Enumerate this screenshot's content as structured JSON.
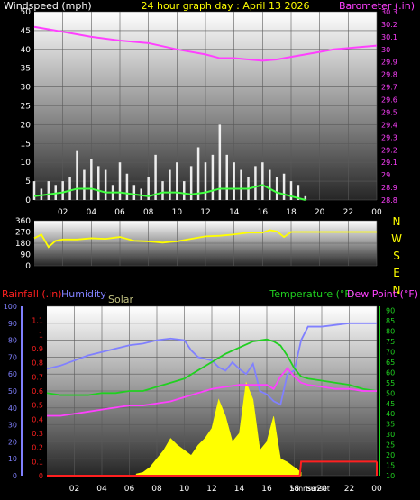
{
  "page": {
    "title": "24 hour graph day : April 13 2026",
    "colors": {
      "background": "#000000",
      "title": "#ffff00",
      "tick": "#ffffff",
      "gridline": "#404040"
    }
  },
  "chart_data": [
    {
      "id": "wind",
      "type": "line",
      "labels": {
        "left_title": "Windspeed (mph)",
        "right_title": "Barometer (.in)"
      },
      "x": {
        "ticks": [
          "02",
          "04",
          "06",
          "08",
          "10",
          "12",
          "14",
          "16",
          "18",
          "20",
          "22",
          "00"
        ],
        "tick_hours": [
          2,
          4,
          6,
          8,
          10,
          12,
          14,
          16,
          18,
          20,
          22,
          24
        ],
        "range_hours": [
          0,
          24
        ]
      },
      "y_left": {
        "range": [
          0,
          50
        ],
        "ticks": [
          "0",
          "5",
          "10",
          "15",
          "20",
          "25",
          "30",
          "35",
          "40",
          "45",
          "50"
        ]
      },
      "y_right": {
        "range": [
          28.8,
          30.3
        ],
        "ticks": [
          "28.8",
          "28.9",
          "29",
          "29.1",
          "29.2",
          "29.3",
          "29.4",
          "29.5",
          "29.6",
          "29.7",
          "29.8",
          "29.9",
          "30",
          "30.1",
          "30.2",
          "30.3"
        ]
      },
      "grid": true,
      "series": [
        {
          "kind": "barometer",
          "axis": "right",
          "color": "#ff40ff",
          "hours": [
            0,
            2,
            4,
            6,
            8,
            10,
            12,
            13,
            14,
            15,
            16,
            17,
            18,
            19,
            20,
            21,
            22,
            23,
            24
          ],
          "values": [
            30.18,
            30.14,
            30.1,
            30.07,
            30.05,
            30.0,
            29.96,
            29.93,
            29.93,
            29.92,
            29.91,
            29.92,
            29.94,
            29.96,
            29.98,
            30.0,
            30.01,
            30.02,
            30.03
          ]
        },
        {
          "kind": "gust",
          "axis": "left",
          "color": "#ffffff",
          "hours": [
            0,
            0.5,
            1,
            1.5,
            2,
            2.5,
            3,
            3.5,
            4,
            4.5,
            5,
            5.5,
            6,
            6.5,
            7,
            7.5,
            8,
            8.5,
            9,
            9.5,
            10,
            10.5,
            11,
            11.5,
            12,
            12.5,
            13,
            13.5,
            14,
            14.5,
            15,
            15.5,
            16,
            16.5,
            17,
            17.5,
            18,
            18.5,
            19
          ],
          "values": [
            5,
            3,
            5,
            4,
            5,
            6,
            13,
            8,
            11,
            9,
            8,
            4,
            10,
            7,
            4,
            3,
            6,
            12,
            5,
            8,
            10,
            5,
            9,
            14,
            10,
            12,
            20,
            12,
            10,
            8,
            6,
            9,
            10,
            8,
            6,
            7,
            5,
            4,
            1
          ]
        },
        {
          "kind": "average",
          "axis": "left",
          "color": "#40ff40",
          "hours": [
            0,
            1,
            2,
            3,
            4,
            5,
            6,
            7,
            8,
            9,
            10,
            11,
            12,
            13,
            14,
            15,
            16,
            17,
            18,
            19
          ],
          "values": [
            1,
            1.5,
            2,
            3,
            3,
            2,
            2,
            1.5,
            1,
            2,
            2,
            1.5,
            2,
            3,
            3,
            3,
            4,
            2,
            1,
            0
          ]
        }
      ]
    },
    {
      "id": "direction",
      "type": "line",
      "x": {
        "range_hours": [
          0,
          24
        ]
      },
      "y": {
        "range": [
          0,
          360
        ],
        "ticks": [
          "0",
          "90",
          "180",
          "270",
          "360"
        ]
      },
      "compass": [
        "N",
        "W",
        "S",
        "E",
        "N"
      ],
      "grid": true,
      "series": [
        {
          "kind": "direction",
          "color": "#ffff00",
          "hours": [
            0,
            0.5,
            1,
            1.5,
            2,
            3,
            4,
            5,
            6,
            7,
            8,
            9,
            10,
            11,
            12,
            13,
            14,
            15,
            16,
            16.5,
            17,
            17.5,
            18,
            19,
            20,
            21,
            22,
            23,
            24
          ],
          "values": [
            220,
            250,
            150,
            200,
            210,
            210,
            220,
            215,
            230,
            200,
            195,
            185,
            195,
            215,
            235,
            240,
            250,
            265,
            265,
            285,
            275,
            230,
            270,
            270,
            270,
            270,
            270,
            270,
            270
          ]
        }
      ]
    },
    {
      "id": "weather",
      "type": "line",
      "labels": {
        "rainfall": "Rainfall (.in)",
        "humidity": "Humidity",
        "solar": "Solar",
        "temperature": "Temperature (°F)",
        "dewpoint": "Dew Point (°F)",
        "sunrise": "Sunrise",
        "sunset": "Sunset"
      },
      "x": {
        "ticks": [
          "02",
          "04",
          "06",
          "08",
          "10",
          "12",
          "14",
          "16",
          "18",
          "20",
          "22",
          "00"
        ],
        "tick_hours": [
          2,
          4,
          6,
          8,
          10,
          12,
          14,
          16,
          18,
          20,
          22,
          24
        ],
        "range_hours": [
          0,
          24
        ],
        "sunrise_hour": 19.4,
        "sunset_hour": 19.6
      },
      "y_humidity": {
        "range": [
          0,
          100
        ],
        "ticks": [
          "0",
          "10",
          "20",
          "30",
          "40",
          "50",
          "60",
          "70",
          "80",
          "90",
          "100"
        ]
      },
      "y_rain": {
        "range": [
          0,
          1.2
        ],
        "ticks": [
          "0",
          "0.1",
          "0.2",
          "0.3",
          "0.4",
          "0.5",
          "0.6",
          "0.7",
          "0.8",
          "0.9",
          "1",
          "1.1"
        ]
      },
      "y_temp": {
        "range": [
          10,
          92
        ],
        "ticks": [
          "10",
          "15",
          "20",
          "25",
          "30",
          "35",
          "40",
          "45",
          "50",
          "55",
          "60",
          "65",
          "70",
          "75",
          "80",
          "85",
          "90"
        ]
      },
      "grid": true,
      "series": [
        {
          "kind": "solar",
          "color": "#ffff00",
          "hours": [
            6.5,
            7,
            7.5,
            8,
            8.5,
            9,
            9.5,
            10,
            10.5,
            11,
            11.5,
            12,
            12.5,
            13,
            13.5,
            14,
            14.5,
            15,
            15.5,
            16,
            16.5,
            17,
            17.5,
            18,
            18.5
          ],
          "values": [
            1,
            2,
            5,
            10,
            15,
            22,
            18,
            15,
            12,
            18,
            22,
            28,
            45,
            35,
            20,
            25,
            55,
            45,
            15,
            20,
            35,
            10,
            8,
            5,
            2
          ]
        },
        {
          "kind": "humidity",
          "color": "#8080ff",
          "hours": [
            0,
            1,
            2,
            3,
            4,
            5,
            6,
            7,
            8,
            9,
            10,
            10.5,
            11,
            12,
            12.5,
            13,
            13.5,
            14,
            14.5,
            15,
            15.5,
            16,
            16.5,
            17,
            17.5,
            18,
            18.5,
            19,
            20,
            21,
            22,
            23,
            24
          ],
          "values": [
            63,
            65,
            68,
            71,
            73,
            75,
            77,
            78,
            80,
            81,
            80,
            74,
            70,
            68,
            64,
            62,
            67,
            63,
            60,
            66,
            50,
            48,
            44,
            42,
            60,
            62,
            80,
            88,
            88,
            89,
            90,
            90,
            90
          ]
        },
        {
          "kind": "temperature",
          "color": "#20d020",
          "hours": [
            0,
            1,
            2,
            3,
            4,
            5,
            6,
            7,
            8,
            9,
            10,
            11,
            12,
            13,
            14,
            15,
            16,
            16.5,
            17,
            17.5,
            18,
            18.5,
            19,
            20,
            21,
            22,
            23,
            24
          ],
          "values": [
            50,
            49,
            49,
            49,
            50,
            50,
            51,
            51,
            53,
            55,
            57,
            61,
            65,
            69,
            72,
            75,
            76,
            75,
            73,
            68,
            62,
            58,
            57,
            56,
            55,
            54,
            52,
            51
          ]
        },
        {
          "kind": "dewpoint",
          "color": "#ff40ff",
          "hours": [
            0,
            1,
            2,
            3,
            4,
            5,
            6,
            7,
            8,
            9,
            10,
            11,
            12,
            13,
            14,
            15,
            16,
            16.5,
            17,
            17.5,
            18,
            18.5,
            19,
            20,
            21,
            22,
            23,
            24
          ],
          "values": [
            39,
            39,
            40,
            41,
            42,
            43,
            44,
            44,
            45,
            46,
            48,
            50,
            52,
            53,
            54,
            54,
            54,
            52,
            58,
            62,
            58,
            55,
            54,
            53,
            52,
            52,
            51,
            51
          ]
        },
        {
          "kind": "rainfall",
          "color": "#ff2020",
          "hours": [
            0,
            18.4,
            18.5,
            24
          ],
          "values": [
            0,
            0,
            0.1,
            0.1
          ]
        }
      ]
    }
  ]
}
